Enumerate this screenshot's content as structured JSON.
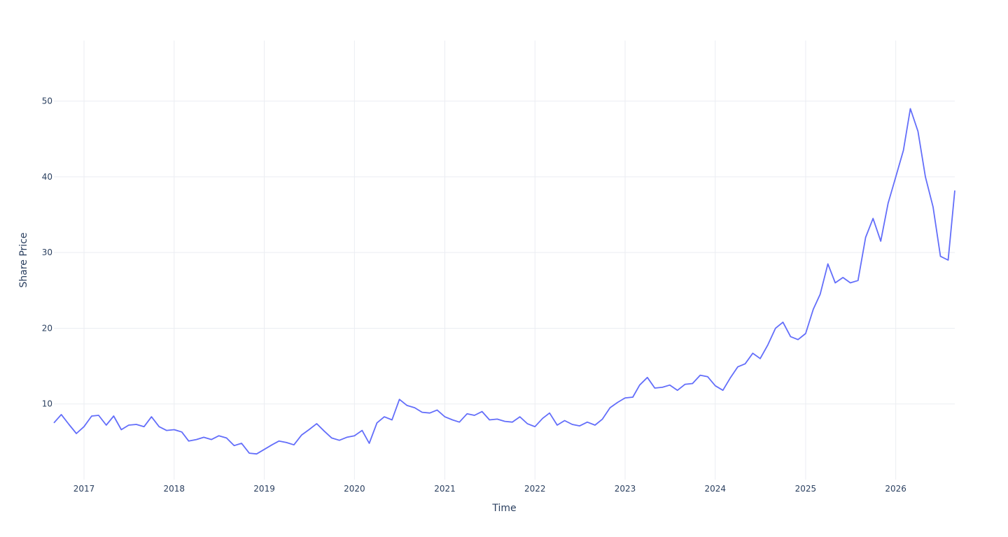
{
  "chart_data": {
    "type": "line",
    "title": "",
    "xlabel": "Time",
    "ylabel": "Share Price",
    "xlim": [
      "2016-09-01",
      "2026-08-28"
    ],
    "ylim": [
      0,
      58
    ],
    "x_ticks": [
      "2017",
      "2018",
      "2019",
      "2020",
      "2021",
      "2022",
      "2023",
      "2024",
      "2025",
      "2026"
    ],
    "y_ticks": [
      10,
      20,
      30,
      40,
      50
    ],
    "grid": true,
    "legend": "none",
    "series_color": "#636efa",
    "series": [
      {
        "x": [
          "2016-09-01",
          "2016-10-01",
          "2016-11-01",
          "2016-12-01",
          "2017-01-01",
          "2017-02-01",
          "2017-03-01",
          "2017-04-01",
          "2017-05-01",
          "2017-06-01",
          "2017-07-01",
          "2017-08-01",
          "2017-09-01",
          "2017-10-01",
          "2017-11-01",
          "2017-12-01",
          "2018-01-01",
          "2018-02-01",
          "2018-03-01",
          "2018-04-01",
          "2018-05-01",
          "2018-06-01",
          "2018-07-01",
          "2018-08-01",
          "2018-09-01",
          "2018-10-01",
          "2018-11-01",
          "2018-12-01",
          "2019-01-01",
          "2019-02-01",
          "2019-03-01",
          "2019-04-01",
          "2019-05-01",
          "2019-06-01",
          "2019-07-01",
          "2019-08-01",
          "2019-09-01",
          "2019-10-01",
          "2019-11-01",
          "2019-12-01",
          "2020-01-01",
          "2020-02-01",
          "2020-03-01",
          "2020-04-01",
          "2020-05-01",
          "2020-06-01",
          "2020-07-01",
          "2020-08-01",
          "2020-09-01",
          "2020-10-01",
          "2020-11-01",
          "2020-12-01",
          "2021-01-01",
          "2021-02-01",
          "2021-03-01",
          "2021-04-01",
          "2021-05-01",
          "2021-06-01",
          "2021-07-01",
          "2021-08-01",
          "2021-09-01",
          "2021-10-01",
          "2021-11-01",
          "2021-12-01",
          "2022-01-01",
          "2022-02-01",
          "2022-03-01",
          "2022-04-01",
          "2022-05-01",
          "2022-06-01",
          "2022-07-01",
          "2022-08-01",
          "2022-09-01",
          "2022-10-01",
          "2022-11-01",
          "2022-12-01",
          "2023-01-01",
          "2023-02-01",
          "2023-03-01",
          "2023-04-01",
          "2023-05-01",
          "2023-06-01",
          "2023-07-01",
          "2023-08-01",
          "2023-09-01",
          "2023-10-01",
          "2023-11-01",
          "2023-12-01",
          "2024-01-01",
          "2024-02-01",
          "2024-03-01",
          "2024-04-01",
          "2024-05-01",
          "2024-06-01",
          "2024-07-01",
          "2024-08-01",
          "2024-09-01",
          "2024-10-01",
          "2024-11-01",
          "2024-12-01",
          "2025-01-01",
          "2025-02-01",
          "2025-03-01",
          "2025-04-01",
          "2025-05-01",
          "2025-06-01",
          "2025-07-01",
          "2025-08-01",
          "2025-09-01",
          "2025-10-01",
          "2025-11-01",
          "2025-12-01",
          "2026-01-01",
          "2026-02-01",
          "2026-03-01",
          "2026-04-01",
          "2026-05-01",
          "2026-06-01",
          "2026-07-01",
          "2026-08-01",
          "2026-08-28"
        ],
        "y": [
          7.5,
          8.6,
          7.3,
          6.1,
          7.0,
          8.4,
          8.5,
          7.2,
          8.4,
          6.6,
          7.2,
          7.3,
          7.0,
          8.3,
          7.0,
          6.5,
          6.6,
          6.3,
          5.1,
          5.3,
          5.6,
          5.3,
          5.8,
          5.5,
          4.5,
          4.8,
          3.5,
          3.4,
          4.0,
          4.6,
          5.1,
          4.9,
          4.6,
          5.9,
          6.6,
          7.4,
          6.4,
          5.5,
          5.2,
          5.6,
          5.8,
          6.5,
          4.8,
          7.5,
          8.3,
          7.9,
          10.6,
          9.8,
          9.5,
          8.9,
          8.8,
          9.2,
          8.3,
          7.9,
          7.6,
          8.7,
          8.5,
          9.0,
          7.9,
          8.0,
          7.7,
          7.6,
          8.3,
          7.4,
          7.0,
          8.1,
          8.8,
          7.2,
          7.8,
          7.3,
          7.1,
          7.6,
          7.2,
          8.0,
          9.5,
          10.2,
          10.8,
          10.9,
          12.5,
          13.5,
          12.1,
          12.2,
          12.5,
          11.8,
          12.6,
          12.7,
          13.8,
          13.6,
          12.4,
          11.8,
          13.4,
          14.9,
          15.3,
          16.7,
          16.0,
          17.8,
          20.0,
          20.8,
          18.9,
          18.5,
          19.3,
          22.5,
          24.5,
          28.5,
          26.0,
          26.7,
          26.0,
          26.3,
          32.0,
          34.5,
          31.5,
          36.5,
          40.0,
          43.5,
          49.0,
          46.0,
          40.0,
          36.0,
          29.5,
          29.0,
          38.2
        ]
      }
    ]
  }
}
